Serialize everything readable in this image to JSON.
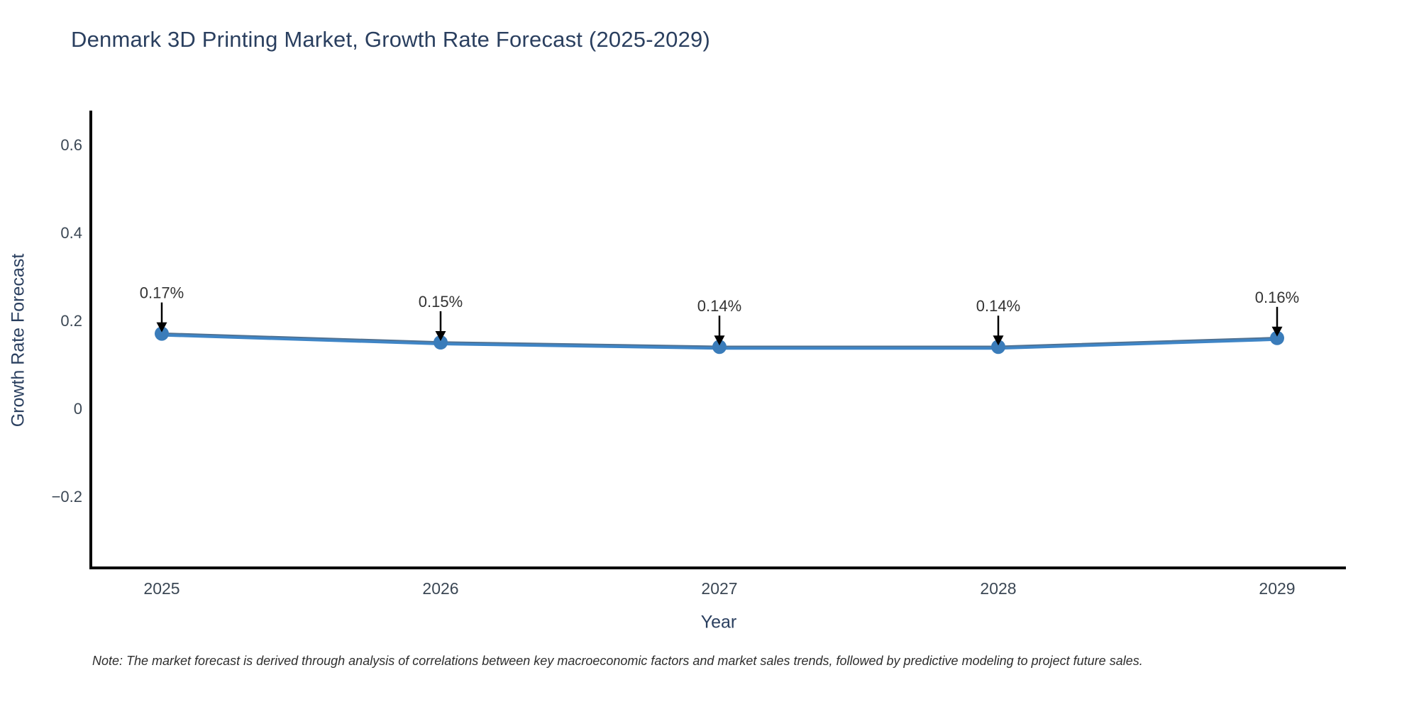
{
  "title": "Denmark 3D Printing Market, Growth Rate Forecast (2025-2029)",
  "note": "Note: The market forecast is derived through analysis of correlations between key macroeconomic factors and market sales trends, followed by predictive modeling to project future sales.",
  "chart_data": {
    "type": "line",
    "title": "Denmark 3D Printing Market, Growth Rate Forecast (2025-2029)",
    "xlabel": "Year",
    "ylabel": "Growth Rate Forecast",
    "categories": [
      2025,
      2026,
      2027,
      2028,
      2029
    ],
    "x_tick_labels": [
      "2025",
      "2026",
      "2027",
      "2028",
      "2029"
    ],
    "values": [
      0.17,
      0.15,
      0.14,
      0.14,
      0.16
    ],
    "point_labels": [
      "0.17%",
      "0.15%",
      "0.14%",
      "0.14%",
      "0.16%"
    ],
    "yticks": [
      0.6,
      0.4,
      0.2,
      0,
      -0.2
    ],
    "ytick_labels": [
      "0.6",
      "0.4",
      "0.2",
      "0",
      "−0.2"
    ],
    "ylim": [
      -0.36,
      0.66
    ],
    "grid": false,
    "legend": "none",
    "annotation_style": "down-arrow-above-each-point",
    "colors": {
      "line": "#3f85c6",
      "line_shadow": "#50708f",
      "marker": "#3a7cba",
      "axis": "#000000",
      "arrow": "#000000",
      "title_text": "#2a3f5f",
      "tick_text": "#3b4754",
      "label_text": "#333333",
      "background": "#ffffff"
    }
  }
}
